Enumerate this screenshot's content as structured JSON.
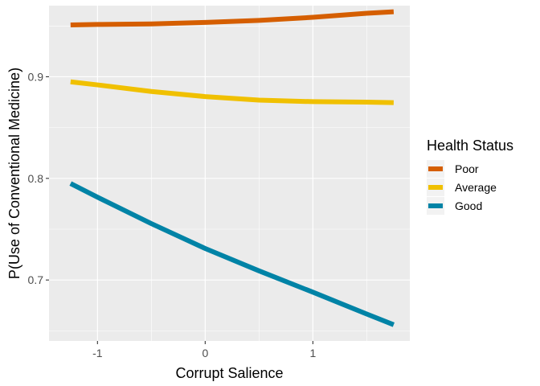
{
  "chart_data": {
    "type": "line",
    "xlabel": "Corrupt Salience",
    "ylabel": "P(Use of Conventional Medicine)",
    "xlim": [
      -1.45,
      1.9
    ],
    "ylim": [
      0.64,
      0.97
    ],
    "x_ticks": [
      -1,
      0,
      1
    ],
    "x_tick_labels": [
      "-1",
      "0",
      "1"
    ],
    "y_ticks": [
      0.7,
      0.8,
      0.9
    ],
    "y_tick_labels": [
      "0.7",
      "0.8",
      "0.9"
    ],
    "grid": true,
    "legend": {
      "title": "Health Status",
      "position": "right"
    },
    "series": [
      {
        "name": "Poor",
        "color": "#d55e00",
        "x": [
          -1.25,
          -1.0,
          -0.5,
          0.0,
          0.5,
          1.0,
          1.5,
          1.75
        ],
        "y": [
          0.951,
          0.9515,
          0.952,
          0.9535,
          0.9555,
          0.9585,
          0.9625,
          0.964
        ]
      },
      {
        "name": "Average",
        "color": "#f0c000",
        "x": [
          -1.25,
          -1.0,
          -0.5,
          0.0,
          0.5,
          1.0,
          1.5,
          1.75
        ],
        "y": [
          0.895,
          0.892,
          0.8855,
          0.8805,
          0.877,
          0.8755,
          0.875,
          0.8745
        ]
      },
      {
        "name": "Good",
        "color": "#0083a6",
        "x": [
          -1.25,
          -1.0,
          -0.5,
          0.0,
          0.5,
          1.0,
          1.5,
          1.75
        ],
        "y": [
          0.795,
          0.7815,
          0.7555,
          0.731,
          0.709,
          0.688,
          0.6665,
          0.656
        ]
      }
    ]
  }
}
